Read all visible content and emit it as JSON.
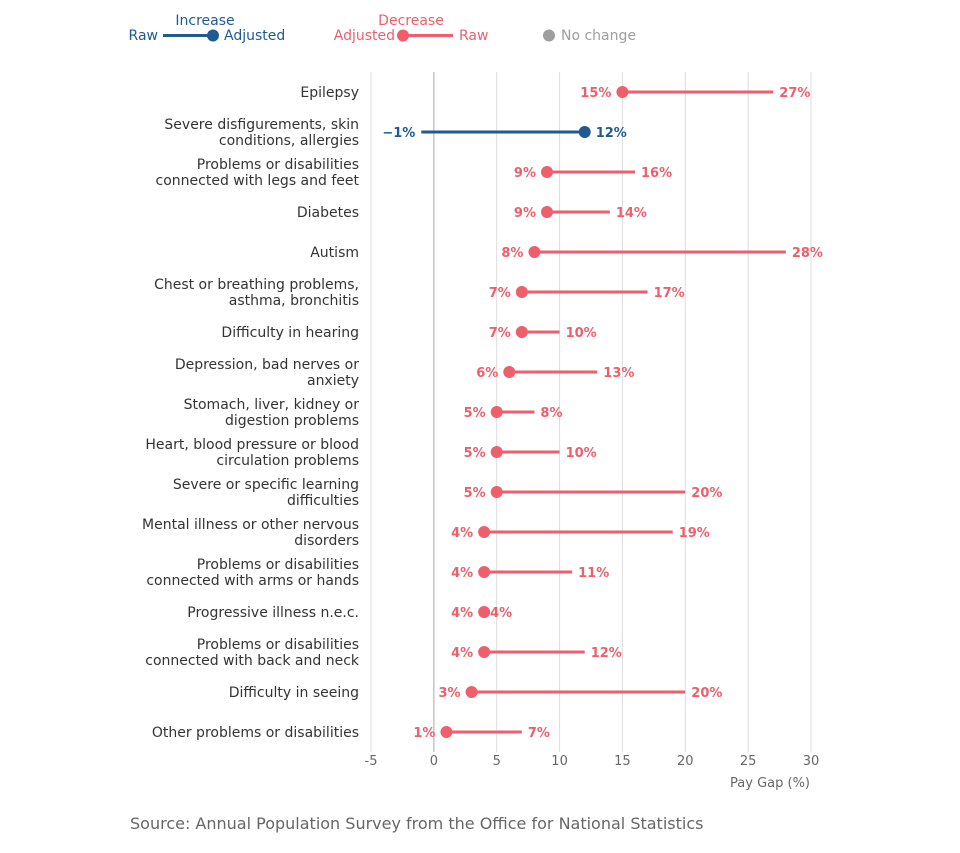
{
  "colors": {
    "increase": "#1f5a91",
    "decrease": "#ee5f6b",
    "nochange": "#9e9e9e",
    "grid": "#dddddd",
    "zero": "#aaaaaa"
  },
  "legend": {
    "increase_title": "Increase",
    "increase_raw": "Raw",
    "increase_adjusted": "Adjusted",
    "decrease_title": "Decrease",
    "decrease_adjusted": "Adjusted",
    "decrease_raw": "Raw",
    "no_change": "No change"
  },
  "source": "Source: Annual Population Survey from the Office for National Statistics",
  "chart_data": {
    "type": "dumbbell",
    "xlabel": "Pay Gap (%)",
    "xlim": [
      -5,
      30
    ],
    "xticks": [
      -5,
      0,
      5,
      10,
      15,
      20,
      25,
      30
    ],
    "grid": true,
    "legend_position": "top-left",
    "series": [
      {
        "name": "Raw"
      },
      {
        "name": "Adjusted"
      }
    ],
    "rows": [
      {
        "category": [
          "Epilepsy"
        ],
        "raw": 27,
        "adjusted": 15,
        "raw_label": "27%",
        "adjusted_label": "15%",
        "direction": "decrease"
      },
      {
        "category": [
          "Severe disfigurements, skin",
          "conditions, allergies"
        ],
        "raw": -1,
        "adjusted": 12,
        "raw_label": "−1%",
        "adjusted_label": "12%",
        "direction": "increase"
      },
      {
        "category": [
          "Problems or disabilities",
          "connected with legs and feet"
        ],
        "raw": 16,
        "adjusted": 9,
        "raw_label": "16%",
        "adjusted_label": "9%",
        "direction": "decrease"
      },
      {
        "category": [
          "Diabetes"
        ],
        "raw": 14,
        "adjusted": 9,
        "raw_label": "14%",
        "adjusted_label": "9%",
        "direction": "decrease"
      },
      {
        "category": [
          "Autism"
        ],
        "raw": 28,
        "adjusted": 8,
        "raw_label": "28%",
        "adjusted_label": "8%",
        "direction": "decrease"
      },
      {
        "category": [
          "Chest or breathing problems,",
          "asthma, bronchitis"
        ],
        "raw": 17,
        "adjusted": 7,
        "raw_label": "17%",
        "adjusted_label": "7%",
        "direction": "decrease"
      },
      {
        "category": [
          "Difficulty in hearing"
        ],
        "raw": 10,
        "adjusted": 7,
        "raw_label": "10%",
        "adjusted_label": "7%",
        "direction": "decrease"
      },
      {
        "category": [
          "Depression, bad nerves or",
          "anxiety"
        ],
        "raw": 13,
        "adjusted": 6,
        "raw_label": "13%",
        "adjusted_label": "6%",
        "direction": "decrease"
      },
      {
        "category": [
          "Stomach, liver, kidney or",
          "digestion problems"
        ],
        "raw": 8,
        "adjusted": 5,
        "raw_label": "8%",
        "adjusted_label": "5%",
        "direction": "decrease"
      },
      {
        "category": [
          "Heart, blood pressure or blood",
          "circulation problems"
        ],
        "raw": 10,
        "adjusted": 5,
        "raw_label": "10%",
        "adjusted_label": "5%",
        "direction": "decrease"
      },
      {
        "category": [
          "Severe or specific learning",
          "difficulties"
        ],
        "raw": 20,
        "adjusted": 5,
        "raw_label": "20%",
        "adjusted_label": "5%",
        "direction": "decrease"
      },
      {
        "category": [
          "Mental illness or other nervous",
          "disorders"
        ],
        "raw": 19,
        "adjusted": 4,
        "raw_label": "19%",
        "adjusted_label": "4%",
        "direction": "decrease"
      },
      {
        "category": [
          "Problems or disabilities",
          "connected with arms or hands"
        ],
        "raw": 11,
        "adjusted": 4,
        "raw_label": "11%",
        "adjusted_label": "4%",
        "direction": "decrease"
      },
      {
        "category": [
          "Progressive illness n.e.c."
        ],
        "raw": 4,
        "adjusted": 4,
        "raw_label": "4%",
        "adjusted_label": "4%",
        "direction": "decrease"
      },
      {
        "category": [
          "Problems or disabilities",
          "connected with back and neck"
        ],
        "raw": 12,
        "adjusted": 4,
        "raw_label": "12%",
        "adjusted_label": "4%",
        "direction": "decrease"
      },
      {
        "category": [
          "Difficulty in seeing"
        ],
        "raw": 20,
        "adjusted": 3,
        "raw_label": "20%",
        "adjusted_label": "3%",
        "direction": "decrease"
      },
      {
        "category": [
          "Other problems or disabilities"
        ],
        "raw": 7,
        "adjusted": 1,
        "raw_label": "7%",
        "adjusted_label": "1%",
        "direction": "decrease"
      }
    ]
  }
}
